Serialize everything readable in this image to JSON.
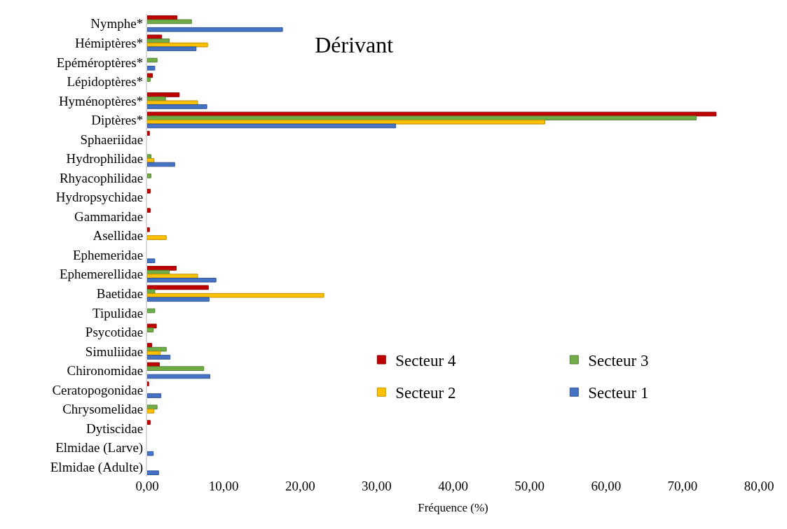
{
  "chart_data": {
    "type": "bar",
    "orientation": "horizontal",
    "title": "Dérivant",
    "xlabel": "Fréquence (%)",
    "categories": [
      "Nymphe*",
      "Hémiptères*",
      "Epéméroptères*",
      "Lépidoptères*",
      "Hyménoptères*",
      "Diptères*",
      "Sphaeriidae",
      "Hydrophilidae",
      "Rhyacophilidae",
      "Hydropsychidae",
      "Gammaridae",
      "Asellidae",
      "Ephemeridae",
      "Ephemerellidae",
      "Baetidae",
      "Tipulidae",
      "Psycotidae",
      "Simuliidae",
      "Chironomidae",
      "Ceratopogonidae",
      "Chrysomelidae",
      "Dytiscidae",
      "Elmidae (Larve)",
      "Elmidae (Adulte)"
    ],
    "series": [
      {
        "name": "Secteur 4",
        "color": "#c00000",
        "values": [
          3.9,
          1.9,
          null,
          0.7,
          4.2,
          74.4,
          0.3,
          null,
          null,
          0.4,
          0.4,
          0.3,
          null,
          3.8,
          8.0,
          null,
          1.2,
          0.6,
          1.6,
          0.2,
          null,
          0.4,
          null,
          null
        ]
      },
      {
        "name": "Secteur 3",
        "color": "#70ad47",
        "values": [
          5.8,
          2.9,
          1.3,
          0.4,
          2.4,
          71.8,
          null,
          0.5,
          0.5,
          null,
          null,
          null,
          null,
          2.9,
          1.0,
          1.0,
          0.8,
          2.5,
          7.4,
          null,
          1.3,
          null,
          null,
          null
        ]
      },
      {
        "name": "Secteur 2",
        "color": "#ffc000",
        "values": [
          null,
          7.9,
          null,
          null,
          6.6,
          52.0,
          null,
          0.9,
          null,
          null,
          null,
          2.5,
          null,
          6.6,
          23.1,
          null,
          null,
          1.7,
          null,
          null,
          0.9,
          null,
          null,
          null
        ]
      },
      {
        "name": "Secteur 1",
        "color": "#4472c4",
        "values": [
          17.7,
          6.4,
          1.0,
          null,
          7.8,
          32.5,
          null,
          3.6,
          null,
          null,
          null,
          null,
          1.0,
          9.0,
          8.1,
          null,
          null,
          3.0,
          8.2,
          1.8,
          null,
          null,
          0.8,
          1.5
        ]
      }
    ],
    "xlim": [
      0,
      80
    ],
    "xticks": [
      {
        "value": 0,
        "label": "0,00"
      },
      {
        "value": 10,
        "label": "10,00"
      },
      {
        "value": 20,
        "label": "20,00"
      },
      {
        "value": 30,
        "label": "30,00"
      },
      {
        "value": 40,
        "label": "40,00"
      },
      {
        "value": 50,
        "label": "50,00"
      },
      {
        "value": 60,
        "label": "60,00"
      },
      {
        "value": 70,
        "label": "70,00"
      },
      {
        "value": 80,
        "label": "80,00"
      }
    ],
    "legend": "bottom right"
  }
}
